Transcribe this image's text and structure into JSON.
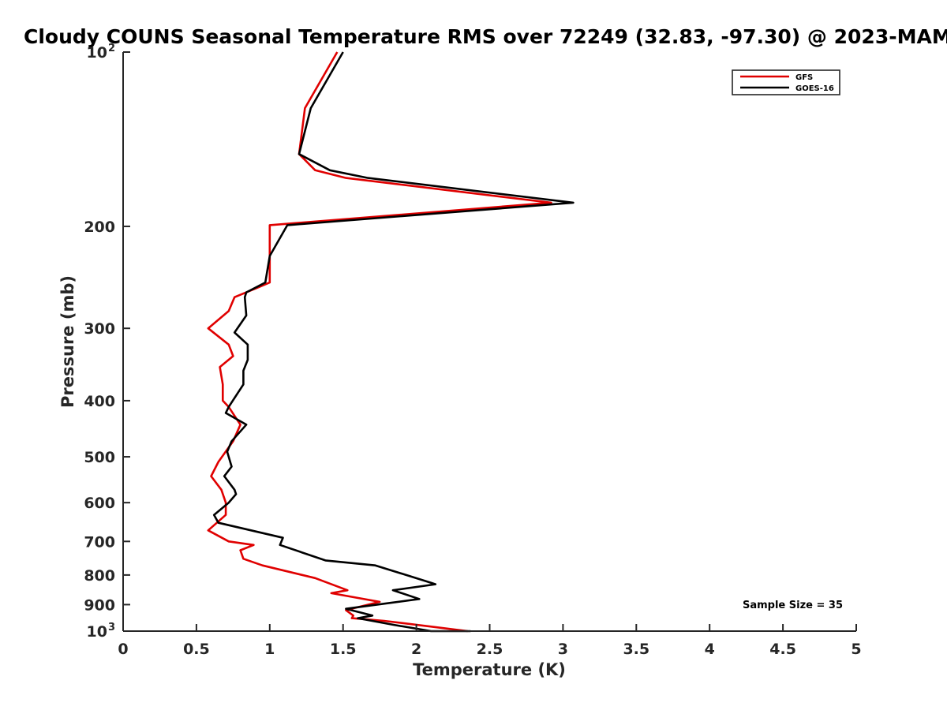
{
  "chart_data": {
    "type": "line",
    "title": "Cloudy COUNS Seasonal Temperature RMS over 72249 (32.83, -97.30) @ 2023-MAM",
    "xlabel": "Temperature (K)",
    "ylabel": "Pressure (mb)",
    "xlim": [
      0,
      5
    ],
    "ylim": [
      100,
      1000
    ],
    "yscale": "log",
    "y_reversed": true,
    "grid": false,
    "legend_position": "top-right",
    "x_ticks": [
      "0",
      "0.5",
      "1",
      "1.5",
      "2",
      "2.5",
      "3",
      "3.5",
      "4",
      "4.5",
      "5"
    ],
    "x_tick_values": [
      0,
      0.5,
      1,
      1.5,
      2,
      2.5,
      3,
      3.5,
      4,
      4.5,
      5
    ],
    "y_ticks": [
      {
        "value": 100,
        "base": "10",
        "exp": "2"
      },
      {
        "value": 200,
        "base": "200",
        "exp": ""
      },
      {
        "value": 300,
        "base": "300",
        "exp": ""
      },
      {
        "value": 400,
        "base": "400",
        "exp": ""
      },
      {
        "value": 500,
        "base": "500",
        "exp": ""
      },
      {
        "value": 600,
        "base": "600",
        "exp": ""
      },
      {
        "value": 700,
        "base": "700",
        "exp": ""
      },
      {
        "value": 800,
        "base": "800",
        "exp": ""
      },
      {
        "value": 900,
        "base": "900",
        "exp": ""
      },
      {
        "value": 1000,
        "base": "10",
        "exp": "3"
      }
    ],
    "annotation": "Sample Size = 35",
    "series": [
      {
        "name": "GFS",
        "color": "#e00000",
        "points": [
          [
            1.46,
            100
          ],
          [
            1.24,
            125
          ],
          [
            1.2,
            150
          ],
          [
            1.31,
            160
          ],
          [
            1.52,
            165
          ],
          [
            2.92,
            182
          ],
          [
            1.0,
            199
          ],
          [
            1.0,
            225
          ],
          [
            1.0,
            250
          ],
          [
            0.92,
            255
          ],
          [
            0.76,
            265
          ],
          [
            0.72,
            280
          ],
          [
            0.58,
            300
          ],
          [
            0.72,
            320
          ],
          [
            0.75,
            335
          ],
          [
            0.66,
            350
          ],
          [
            0.68,
            375
          ],
          [
            0.68,
            400
          ],
          [
            0.72,
            410
          ],
          [
            0.8,
            440
          ],
          [
            0.75,
            470
          ],
          [
            0.65,
            510
          ],
          [
            0.6,
            540
          ],
          [
            0.67,
            570
          ],
          [
            0.7,
            600
          ],
          [
            0.7,
            630
          ],
          [
            0.58,
            670
          ],
          [
            0.72,
            700
          ],
          [
            0.89,
            710
          ],
          [
            0.8,
            725
          ],
          [
            0.82,
            750
          ],
          [
            0.95,
            770
          ],
          [
            1.31,
            810
          ],
          [
            1.53,
            850
          ],
          [
            1.42,
            860
          ],
          [
            1.75,
            890
          ],
          [
            1.52,
            920
          ],
          [
            1.57,
            940
          ],
          [
            1.56,
            950
          ],
          [
            1.78,
            960
          ],
          [
            2.14,
            985
          ],
          [
            2.35,
            1000
          ]
        ]
      },
      {
        "name": "GOES-16",
        "color": "#000000",
        "points": [
          [
            1.5,
            100
          ],
          [
            1.28,
            125
          ],
          [
            1.2,
            150
          ],
          [
            1.41,
            160
          ],
          [
            1.67,
            165
          ],
          [
            3.07,
            182
          ],
          [
            1.12,
            199
          ],
          [
            1.0,
            225
          ],
          [
            0.97,
            250
          ],
          [
            0.84,
            260
          ],
          [
            0.83,
            265
          ],
          [
            0.84,
            285
          ],
          [
            0.76,
            305
          ],
          [
            0.85,
            320
          ],
          [
            0.85,
            340
          ],
          [
            0.82,
            355
          ],
          [
            0.82,
            360
          ],
          [
            0.82,
            375
          ],
          [
            0.72,
            410
          ],
          [
            0.7,
            420
          ],
          [
            0.84,
            440
          ],
          [
            0.74,
            470
          ],
          [
            0.71,
            490
          ],
          [
            0.74,
            520
          ],
          [
            0.69,
            540
          ],
          [
            0.76,
            570
          ],
          [
            0.77,
            580
          ],
          [
            0.72,
            600
          ],
          [
            0.62,
            630
          ],
          [
            0.65,
            650
          ],
          [
            1.09,
            690
          ],
          [
            1.07,
            710
          ],
          [
            1.38,
            755
          ],
          [
            1.72,
            770
          ],
          [
            2.1,
            825
          ],
          [
            2.13,
            830
          ],
          [
            1.84,
            850
          ],
          [
            2.02,
            880
          ],
          [
            1.52,
            915
          ],
          [
            1.7,
            940
          ],
          [
            1.6,
            950
          ],
          [
            1.84,
            975
          ],
          [
            2.1,
            1000
          ],
          [
            2.37,
            1000
          ]
        ]
      }
    ]
  }
}
